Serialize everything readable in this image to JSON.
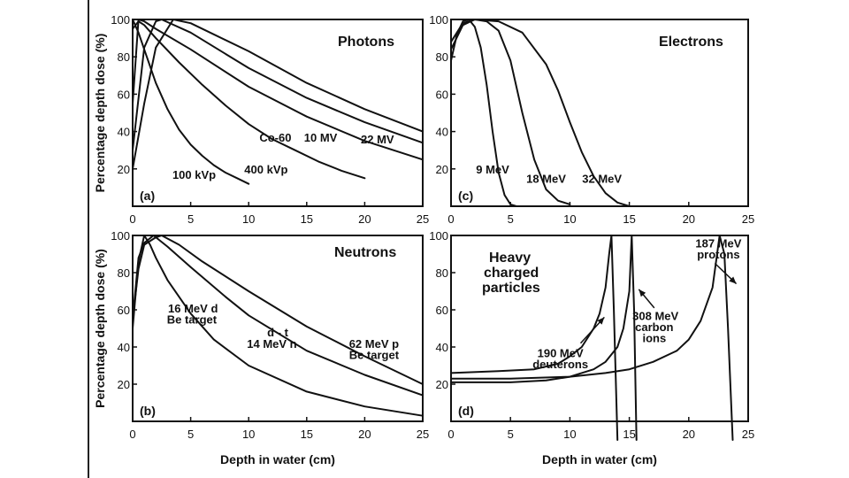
{
  "chart_data": [
    {
      "id": "photons",
      "type": "line",
      "title": "Photons",
      "letter": "(a)",
      "xlabel": "",
      "ylabel": "Percentage depth dose  (%)",
      "xlim": [
        0,
        25
      ],
      "ylim": [
        0,
        100
      ],
      "xticks": [
        "0",
        "5",
        "10",
        "15",
        "20",
        "25"
      ],
      "yticks": [
        "20",
        "40",
        "60",
        "80",
        "100"
      ],
      "series": [
        {
          "name": "100 kVp",
          "x": [
            0,
            0.5,
            1,
            2,
            3,
            4,
            5,
            6,
            7,
            8,
            9,
            10
          ],
          "y": [
            100,
            93,
            84,
            66,
            52,
            41,
            33,
            27,
            22,
            18,
            15,
            12
          ]
        },
        {
          "name": "400 kVp",
          "x": [
            0,
            0.5,
            1,
            2,
            4,
            6,
            8,
            10,
            12,
            14,
            16,
            18,
            20
          ],
          "y": [
            95,
            99,
            97,
            90,
            77,
            65,
            54,
            44,
            36,
            30,
            24,
            19,
            15
          ]
        },
        {
          "name": "Co-60",
          "x": [
            0,
            0.5,
            1,
            2,
            5,
            10,
            15,
            20,
            25
          ],
          "y": [
            55,
            100,
            99,
            95,
            84,
            64,
            48,
            35,
            25
          ]
        },
        {
          "name": "10 MV",
          "x": [
            0,
            1,
            2,
            2.5,
            5,
            10,
            15,
            20,
            25
          ],
          "y": [
            30,
            85,
            99,
            100,
            93,
            74,
            58,
            45,
            34
          ]
        },
        {
          "name": "22 MV",
          "x": [
            0,
            1,
            2,
            3.5,
            5,
            10,
            15,
            20,
            25
          ],
          "y": [
            20,
            55,
            85,
            100,
            98,
            83,
            66,
            52,
            40
          ]
        }
      ],
      "labels": [
        {
          "text": "100 kVp",
          "x": 5.3,
          "y": 17
        },
        {
          "text": "400 kVp",
          "x": 11.5,
          "y": 20
        },
        {
          "text": "Co-60",
          "x": 12.3,
          "y": 37
        },
        {
          "text": "10 MV",
          "x": 16.2,
          "y": 37
        },
        {
          "text": "22 MV",
          "x": 21.1,
          "y": 36
        }
      ]
    },
    {
      "id": "electrons",
      "type": "line",
      "title": "Electrons",
      "letter": "(c)",
      "xlabel": "",
      "ylabel": "",
      "xlim": [
        0,
        25
      ],
      "ylim": [
        0,
        100
      ],
      "xticks": [
        "0",
        "5",
        "10",
        "15",
        "20",
        "25"
      ],
      "yticks": [
        "20",
        "40",
        "60",
        "80",
        "100"
      ],
      "series": [
        {
          "name": "9 MeV",
          "x": [
            0,
            0.5,
            1,
            1.5,
            2,
            2.5,
            3,
            3.5,
            4,
            4.5,
            5,
            5.5
          ],
          "y": [
            78,
            92,
            99,
            100,
            96,
            85,
            65,
            40,
            18,
            6,
            1,
            0
          ]
        },
        {
          "name": "18 MeV",
          "x": [
            0,
            1,
            2,
            3,
            4,
            5,
            6,
            7,
            8,
            9,
            10
          ],
          "y": [
            84,
            97,
            100,
            99,
            94,
            78,
            50,
            25,
            9,
            3,
            1
          ]
        },
        {
          "name": "32 MeV",
          "x": [
            0,
            1,
            2,
            4,
            6,
            8,
            9,
            10,
            11,
            12,
            13,
            14,
            15
          ],
          "y": [
            88,
            98,
            100,
            99,
            93,
            76,
            62,
            45,
            29,
            16,
            7,
            2,
            0
          ]
        }
      ],
      "labels": [
        {
          "text": "9 MeV",
          "x": 3.5,
          "y": 20
        },
        {
          "text": "18 MeV",
          "x": 8.0,
          "y": 15
        },
        {
          "text": "32 MeV",
          "x": 12.7,
          "y": 15
        }
      ]
    },
    {
      "id": "neutrons",
      "type": "line",
      "title": "Neutrons",
      "letter": "(b)",
      "xlabel": "Depth in water  (cm)",
      "ylabel": "Percentage depth dose  (%)",
      "xlim": [
        0,
        25
      ],
      "ylim": [
        0,
        100
      ],
      "xticks": [
        "0",
        "5",
        "10",
        "15",
        "20",
        "25"
      ],
      "yticks": [
        "20",
        "40",
        "60",
        "80",
        "100"
      ],
      "series": [
        {
          "name": "16 MeV d Be target",
          "x": [
            0,
            0.5,
            1,
            1.5,
            2,
            3,
            5,
            7,
            10,
            15,
            20,
            25
          ],
          "y": [
            50,
            86,
            100,
            95,
            88,
            76,
            58,
            44,
            30,
            16,
            8,
            3
          ]
        },
        {
          "name": "d - t 14 MeV n",
          "x": [
            0,
            0.5,
            1,
            1.8,
            3,
            5,
            8,
            10,
            15,
            20,
            25
          ],
          "y": [
            55,
            88,
            96,
            100,
            94,
            83,
            67,
            57,
            38,
            25,
            14
          ]
        },
        {
          "name": "62 MeV p Be target",
          "x": [
            0,
            0.5,
            1,
            2,
            2.5,
            4,
            6,
            10,
            15,
            20,
            25
          ],
          "y": [
            55,
            82,
            95,
            99,
            100,
            95,
            86,
            70,
            51,
            35,
            20
          ]
        }
      ],
      "labels": [
        {
          "text": "16 MeV  d",
          "x": 5.2,
          "y": 61
        },
        {
          "text": "Be target",
          "x": 5.1,
          "y": 55
        },
        {
          "text": "d  -  t",
          "x": 12.5,
          "y": 48
        },
        {
          "text": "14 MeV   n",
          "x": 12.0,
          "y": 42
        },
        {
          "text": "62 MeV  p",
          "x": 20.8,
          "y": 42
        },
        {
          "text": "Be target",
          "x": 20.8,
          "y": 36
        }
      ]
    },
    {
      "id": "heavy",
      "type": "line",
      "title": [
        "Heavy",
        "charged",
        "particles"
      ],
      "letter": "(d)",
      "xlabel": "Depth in water  (cm)",
      "ylabel": "",
      "xlim": [
        0,
        25
      ],
      "ylim": [
        0,
        100
      ],
      "xticks": [
        "0",
        "5",
        "10",
        "15",
        "20",
        "25"
      ],
      "yticks": [
        "20",
        "40",
        "60",
        "80",
        "100"
      ],
      "series": [
        {
          "name": "190 MeV deuterons",
          "x": [
            0,
            4,
            7,
            9,
            10,
            11,
            12,
            12.5,
            13,
            13.3,
            13.5,
            13.7,
            14
          ],
          "y": [
            26,
            27,
            28,
            31,
            35,
            40,
            50,
            58,
            72,
            90,
            100,
            60,
            -10
          ]
        },
        {
          "name": "308 MeV carbon ions",
          "x": [
            0,
            5,
            8,
            10,
            12,
            13,
            14,
            14.5,
            15,
            15.2,
            15.4,
            15.6
          ],
          "y": [
            21,
            21,
            22,
            24,
            28,
            32,
            40,
            50,
            70,
            100,
            60,
            -10
          ]
        },
        {
          "name": "187 MeV protons",
          "x": [
            0,
            5,
            10,
            13,
            15,
            17,
            19,
            20,
            21,
            22,
            22.6,
            23,
            23.3,
            23.7
          ],
          "y": [
            23,
            23,
            24,
            26,
            28,
            32,
            38,
            44,
            54,
            72,
            100,
            90,
            50,
            -10
          ]
        }
      ],
      "labels": [
        {
          "text": "190 MeV",
          "x": 9.2,
          "y": 37
        },
        {
          "text": "deuterons",
          "x": 9.2,
          "y": 31
        },
        {
          "text": "308 MeV",
          "x": 17.2,
          "y": 57
        },
        {
          "text": "carbon",
          "x": 17.1,
          "y": 51
        },
        {
          "text": "ions",
          "x": 17.1,
          "y": 45
        },
        {
          "text": "187 MeV",
          "x": 22.5,
          "y": 96
        },
        {
          "text": "protons",
          "x": 22.5,
          "y": 90
        }
      ],
      "arrows": [
        {
          "from": [
            10.9,
            42
          ],
          "to": [
            12.9,
            56
          ]
        },
        {
          "from": [
            17.1,
            61
          ],
          "to": [
            15.8,
            71
          ]
        },
        {
          "from": [
            22.2,
            85
          ],
          "to": [
            24.0,
            74
          ]
        }
      ]
    }
  ]
}
